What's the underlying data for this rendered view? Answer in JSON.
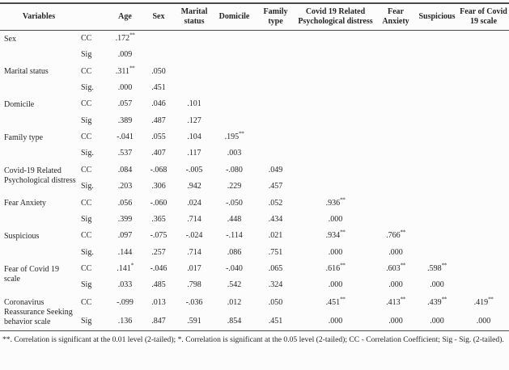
{
  "page": {
    "background": "#fcfcfc",
    "text_color": "#262626",
    "rule_color": "#4a4a4a"
  },
  "table": {
    "header": {
      "variables_label": "Variables",
      "stat_column_label": "",
      "columns": [
        "Age",
        "Sex",
        "Marital status",
        "Domicile",
        "Family type",
        "Covid 19 Related Psychological distress",
        "Fear Anxiety",
        "Suspicious",
        "Fear of Covid 19 scale"
      ]
    },
    "num_value_columns": 9,
    "groups": [
      {
        "variable": "Sex",
        "cc_label": "CC",
        "sig_label": "Sig",
        "cc": [
          ".172**"
        ],
        "sig": [
          ".009"
        ]
      },
      {
        "variable": "Marital status",
        "cc_label": "CC",
        "sig_label": "Sig.",
        "cc": [
          ".311**",
          ".050"
        ],
        "sig": [
          ".000",
          ".451"
        ]
      },
      {
        "variable": "Domicile",
        "cc_label": "CC",
        "sig_label": "Sig",
        "cc": [
          ".057",
          ".046",
          ".101"
        ],
        "sig": [
          ".389",
          ".487",
          ".127"
        ]
      },
      {
        "variable": "Family type",
        "cc_label": "CC",
        "sig_label": "Sig.",
        "cc": [
          "-.041",
          ".055",
          ".104",
          ".195**"
        ],
        "sig": [
          ".537",
          ".407",
          ".117",
          ".003"
        ]
      },
      {
        "variable": "Covid-19 Related Psychological distress",
        "cc_label": "CC",
        "sig_label": "Sig.",
        "cc": [
          ".084",
          "-.068",
          "-.005",
          "-.080",
          ".049"
        ],
        "sig": [
          ".203",
          ".306",
          ".942",
          ".229",
          ".457"
        ]
      },
      {
        "variable": "Fear Anxiety",
        "cc_label": "CC",
        "sig_label": "Sig",
        "cc": [
          ".056",
          "-.060",
          ".024",
          "-.050",
          ".052",
          ".936**"
        ],
        "sig": [
          ".399",
          ".365",
          ".714",
          ".448",
          ".434",
          ".000"
        ]
      },
      {
        "variable": "Suspicious",
        "cc_label": "CC",
        "sig_label": "Sig.",
        "cc": [
          ".097",
          "-.075",
          "-.024",
          "-.114",
          ".021",
          ".934**",
          ".766**"
        ],
        "sig": [
          ".144",
          ".257",
          ".714",
          ".086",
          ".751",
          ".000",
          ".000"
        ]
      },
      {
        "variable": "Fear of Covid 19 scale",
        "cc_label": "CC",
        "sig_label": "Sig",
        "cc": [
          ".141*",
          "-.046",
          ".017",
          "-.040",
          ".065",
          ".616**",
          ".603**",
          ".598**"
        ],
        "sig": [
          ".033",
          ".485",
          ".798",
          ".542",
          ".324",
          ".000",
          ".000",
          ".000"
        ]
      },
      {
        "variable": "Coronavirus Reassurance Seeking behavior scale",
        "cc_label": "CC",
        "sig_label": "Sig",
        "cc": [
          "-.099",
          ".013",
          "-.036",
          ".012",
          ".050",
          ".451**",
          ".413**",
          ".439**",
          ".419**"
        ],
        "sig": [
          ".136",
          ".847",
          ".591",
          ".854",
          ".451",
          ".000",
          ".000",
          ".000",
          ".000"
        ]
      }
    ]
  },
  "footnote": "**. Correlation is significant at the 0.01 level (2-tailed); *. Correlation is significant at the 0.05 level (2-tailed); CC - Correlation Coefficient; Sig - Sig. (2-tailed)."
}
